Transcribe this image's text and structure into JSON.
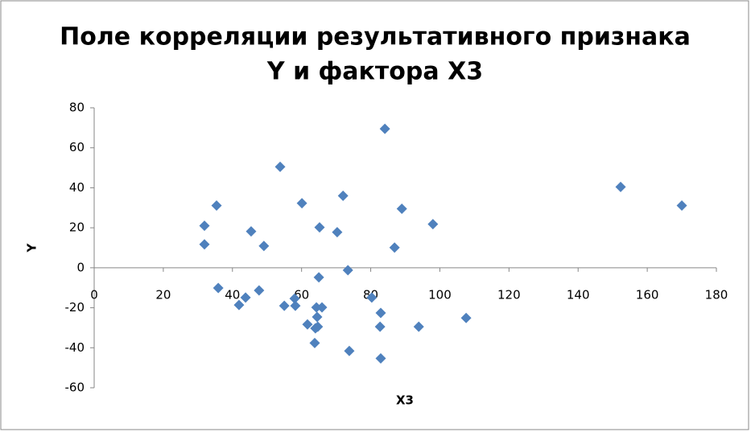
{
  "chart_data": {
    "type": "scatter",
    "title": [
      "Поле корреляции результативного признака",
      "Y и фактора X3"
    ],
    "x_label": "X3",
    "y_label": "Y",
    "x": [
      31.9,
      31.9,
      35.4,
      35.9,
      41.9,
      43.8,
      45.4,
      47.7,
      49.1,
      53.8,
      55.0,
      58.0,
      58.2,
      60.1,
      61.7,
      63.8,
      64.0,
      64.3,
      64.5,
      64.7,
      65.0,
      65.2,
      65.9,
      70.3,
      72.0,
      73.4,
      73.8,
      80.3,
      82.9,
      82.9,
      82.7,
      84.1,
      86.9,
      89.0,
      93.9,
      98.0,
      107.6,
      152.3,
      170.0
    ],
    "values": [
      21,
      11.7,
      31.1,
      -10.1,
      -18.6,
      -14.9,
      18.2,
      -11.3,
      10.9,
      50.5,
      -19,
      -15.4,
      -19,
      32.3,
      -28.3,
      -37.6,
      -30.3,
      -19.8,
      -24.6,
      -29.5,
      -4.8,
      20.2,
      -19.8,
      17.8,
      36,
      -1.2,
      -41.6,
      -14.9,
      -45.3,
      -22.6,
      -29.5,
      69.5,
      10.1,
      29.5,
      -29.5,
      21.8,
      -25.1,
      40.4,
      31.1
    ],
    "color": "#4f81bd",
    "xlim": [
      0,
      180
    ],
    "xticks": [
      0,
      20,
      40,
      60,
      80,
      100,
      120,
      140,
      160,
      180
    ],
    "ylim": [
      -60,
      80
    ],
    "yticks": [
      -60,
      -40,
      -20,
      0,
      20,
      40,
      60,
      80
    ],
    "grid": false
  }
}
